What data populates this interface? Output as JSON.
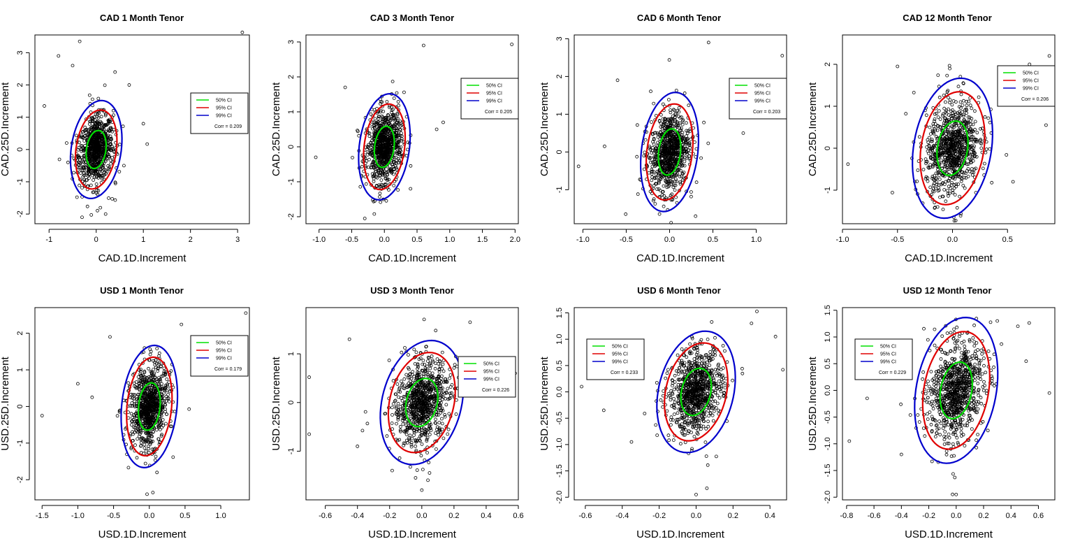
{
  "ellipse_legend": {
    "ci50": "50% CI",
    "ci95": "95% CI",
    "ci99": "99% CI"
  },
  "colors": {
    "ci50": "#00e000",
    "ci95": "#e00000",
    "ci99": "#0000cc",
    "points": "#000000"
  },
  "chart_data": [
    {
      "type": "scatter",
      "title": "CAD 1 Month Tenor",
      "xlabel": "CAD.1D.Increment",
      "ylabel": "CAD.25D.Increment",
      "xlim": [
        -1.3,
        3.25
      ],
      "ylim": [
        -2.3,
        3.55
      ],
      "xticks": [
        -1,
        0,
        1,
        2,
        3
      ],
      "xtick_labels": [
        "-1",
        "0",
        "1",
        "2",
        "3"
      ],
      "yticks": [
        -2,
        -1,
        0,
        1,
        2,
        3
      ],
      "ytick_labels": [
        "-2",
        "-1",
        "0",
        "1",
        "2",
        "3"
      ],
      "sx": 0.18,
      "sy": 0.5,
      "rho": 0.209,
      "corr_label": "Corr = 0.209",
      "legend_loc": "right",
      "outliers": [
        [
          3.1,
          3.63
        ],
        [
          -1.1,
          1.35
        ],
        [
          -0.8,
          2.9
        ],
        [
          -0.35,
          3.35
        ],
        [
          0.7,
          2.0
        ],
        [
          1.0,
          0.8
        ],
        [
          -0.3,
          -2.1
        ],
        [
          0.2,
          -2.0
        ],
        [
          -0.5,
          2.6
        ],
        [
          0.4,
          2.4
        ]
      ]
    },
    {
      "type": "scatter",
      "title": "CAD 3 Month Tenor",
      "xlabel": "CAD.1D.Increment",
      "ylabel": "CAD.25D.Increment",
      "xlim": [
        -1.2,
        2.05
      ],
      "ylim": [
        -2.2,
        3.2
      ],
      "xticks": [
        -1,
        -0.5,
        0,
        0.5,
        1,
        1.5,
        2
      ],
      "xtick_labels": [
        "-1.0",
        "-0.5",
        "0.0",
        "0.5",
        "1.0",
        "1.5",
        "2.0"
      ],
      "yticks": [
        -2,
        -1,
        0,
        1,
        2,
        3
      ],
      "ytick_labels": [
        "-2",
        "-1",
        "0",
        "1",
        "2",
        "3"
      ],
      "sx": 0.13,
      "sy": 0.5,
      "rho": 0.205,
      "corr_label": "Corr = 0.205",
      "legend_loc": "right",
      "outliers": [
        [
          1.95,
          2.93
        ],
        [
          -1.05,
          -0.3
        ],
        [
          0.9,
          0.7
        ],
        [
          0.6,
          2.9
        ],
        [
          -0.6,
          1.7
        ],
        [
          0.8,
          0.5
        ],
        [
          0.4,
          -1.2
        ],
        [
          -0.3,
          -2.05
        ]
      ]
    },
    {
      "type": "scatter",
      "title": "CAD 6 Month Tenor",
      "xlabel": "CAD.1D.Increment",
      "ylabel": "CAD.25D.Increment",
      "xlim": [
        -1.1,
        1.35
      ],
      "ylim": [
        -1.9,
        3.1
      ],
      "xticks": [
        -1,
        -0.5,
        0,
        0.5,
        1
      ],
      "xtick_labels": [
        "-1.0",
        "-0.5",
        "0.0",
        "0.5",
        "1.0"
      ],
      "yticks": [
        -1,
        0,
        1,
        2,
        3
      ],
      "ytick_labels": [
        "-1",
        "0",
        "1",
        "2",
        "3"
      ],
      "sx": 0.11,
      "sy": 0.52,
      "rho": 0.203,
      "corr_label": "Corr = 0.203",
      "legend_loc": "right",
      "outliers": [
        [
          1.3,
          2.55
        ],
        [
          -1.05,
          -0.38
        ],
        [
          0.85,
          0.5
        ],
        [
          0.45,
          2.9
        ],
        [
          -0.6,
          1.9
        ],
        [
          -0.75,
          0.15
        ],
        [
          0.3,
          -1.7
        ]
      ]
    },
    {
      "type": "scatter",
      "title": "CAD 12 Month Tenor",
      "xlabel": "CAD.1D.Increment",
      "ylabel": "CAD.25D.Increment",
      "xlim": [
        -1.0,
        0.93
      ],
      "ylim": [
        -1.8,
        2.7
      ],
      "xticks": [
        -1,
        -0.5,
        0,
        0.5
      ],
      "xtick_labels": [
        "-1.0",
        "-0.5",
        "0.0",
        "0.5"
      ],
      "yticks": [
        -1,
        0,
        1,
        2
      ],
      "ytick_labels": [
        "-1",
        "0",
        "1",
        "2"
      ],
      "sx": 0.12,
      "sy": 0.55,
      "rho": 0.206,
      "corr_label": "Corr = 0.206",
      "legend_loc": "right",
      "outliers": [
        [
          -0.95,
          -0.38
        ],
        [
          0.88,
          2.2
        ],
        [
          -0.5,
          1.95
        ],
        [
          0.85,
          0.55
        ],
        [
          0.55,
          -0.8
        ],
        [
          0.7,
          2.0
        ]
      ]
    },
    {
      "type": "scatter",
      "title": "USD 1 Month Tenor",
      "xlabel": "USD.1D.Increment",
      "ylabel": "USD.25D.Increment",
      "xlim": [
        -1.6,
        1.4
      ],
      "ylim": [
        -2.55,
        2.7
      ],
      "xticks": [
        -1.5,
        -1,
        -0.5,
        0,
        0.5,
        1
      ],
      "xtick_labels": [
        "-1.5",
        "-1.0",
        "-0.5",
        "0.0",
        "0.5",
        "1.0"
      ],
      "yticks": [
        -2,
        -1,
        0,
        1,
        2
      ],
      "ytick_labels": [
        "-2",
        "-1",
        "0",
        "1",
        "2"
      ],
      "sx": 0.13,
      "sy": 0.55,
      "rho": 0.179,
      "corr_label": "Corr = 0.179",
      "legend_loc": "right",
      "outliers": [
        [
          1.35,
          2.55
        ],
        [
          -1.5,
          -0.25
        ],
        [
          -1.0,
          0.62
        ],
        [
          -0.55,
          1.9
        ],
        [
          1.0,
          0.9
        ],
        [
          0.9,
          1.1
        ],
        [
          -0.8,
          0.25
        ],
        [
          0.05,
          -2.35
        ]
      ]
    },
    {
      "type": "scatter",
      "title": "USD 3 Month Tenor",
      "xlabel": "USD.1D.Increment",
      "ylabel": "USD.25D.Increment",
      "xlim": [
        -0.72,
        0.6
      ],
      "ylim": [
        -2.0,
        1.95
      ],
      "xticks": [
        -0.6,
        -0.4,
        -0.2,
        0,
        0.2,
        0.4,
        0.6
      ],
      "xtick_labels": [
        "-0.6",
        "-0.4",
        "-0.2",
        "0.0",
        "0.2",
        "0.4",
        "0.6"
      ],
      "yticks": [
        -1,
        0,
        1
      ],
      "ytick_labels": [
        "-1",
        "0",
        "1"
      ],
      "sx": 0.085,
      "sy": 0.42,
      "rho": 0.226,
      "corr_label": "Corr = 0.226",
      "legend_loc": "right",
      "outliers": [
        [
          -0.7,
          0.52
        ],
        [
          -0.7,
          -0.65
        ],
        [
          0.58,
          0.6
        ],
        [
          -0.45,
          1.3
        ],
        [
          0.3,
          1.65
        ],
        [
          0.5,
          0.9
        ],
        [
          -0.4,
          -0.9
        ],
        [
          0.0,
          -1.8
        ]
      ]
    },
    {
      "type": "scatter",
      "title": "USD 6 Month Tenor",
      "xlabel": "USD.1D.Increment",
      "ylabel": "USD.25D.Increment",
      "xlim": [
        -0.66,
        0.49
      ],
      "ylim": [
        -2.05,
        1.6
      ],
      "xticks": [
        -0.6,
        -0.4,
        -0.2,
        0,
        0.2,
        0.4
      ],
      "xtick_labels": [
        "-0.6",
        "-0.4",
        "-0.2",
        "0.0",
        "0.2",
        "0.4"
      ],
      "yticks": [
        -2,
        -1.5,
        -1,
        -0.5,
        0,
        0.5,
        1,
        1.5
      ],
      "ytick_labels": [
        "-2.0",
        "-1.5",
        "-1.0",
        "-0.5",
        "0.0",
        "0.5",
        "1.0",
        "1.5"
      ],
      "sx": 0.07,
      "sy": 0.38,
      "rho": 0.233,
      "corr_label": "Corr = 0.233",
      "legend_loc": "left",
      "outliers": [
        [
          -0.62,
          0.1
        ],
        [
          0.47,
          0.42
        ],
        [
          0.43,
          1.05
        ],
        [
          -0.5,
          -0.35
        ],
        [
          0.3,
          1.3
        ],
        [
          0.0,
          -1.95
        ],
        [
          -0.35,
          -0.95
        ]
      ]
    },
    {
      "type": "scatter",
      "title": "USD 12 Month Tenor",
      "xlabel": "USD.1D.Increment",
      "ylabel": "USD.25D.Increment",
      "xlim": [
        -0.83,
        0.72
      ],
      "ylim": [
        -2.05,
        1.55
      ],
      "xticks": [
        -0.8,
        -0.6,
        -0.4,
        -0.2,
        0,
        0.2,
        0.4,
        0.6
      ],
      "xtick_labels": [
        "-0.8",
        "-0.6",
        "-0.4",
        "-0.2",
        "0.0",
        "0.2",
        "0.4",
        "0.6"
      ],
      "yticks": [
        -2,
        -1.5,
        -1,
        -0.5,
        0,
        0.5,
        1,
        1.5
      ],
      "ytick_labels": [
        "-2.0",
        "-1.5",
        "-1.0",
        "-0.5",
        "0.0",
        "0.5",
        "1.0",
        "1.5"
      ],
      "sx": 0.1,
      "sy": 0.45,
      "rho": 0.229,
      "corr_label": "Corr = 0.229",
      "legend_loc": "left",
      "outliers": [
        [
          -0.78,
          -0.95
        ],
        [
          0.68,
          -0.05
        ],
        [
          -0.65,
          -0.15
        ],
        [
          0.45,
          1.2
        ],
        [
          -0.4,
          -1.2
        ],
        [
          0.0,
          -1.95
        ],
        [
          0.3,
          1.3
        ]
      ]
    }
  ]
}
